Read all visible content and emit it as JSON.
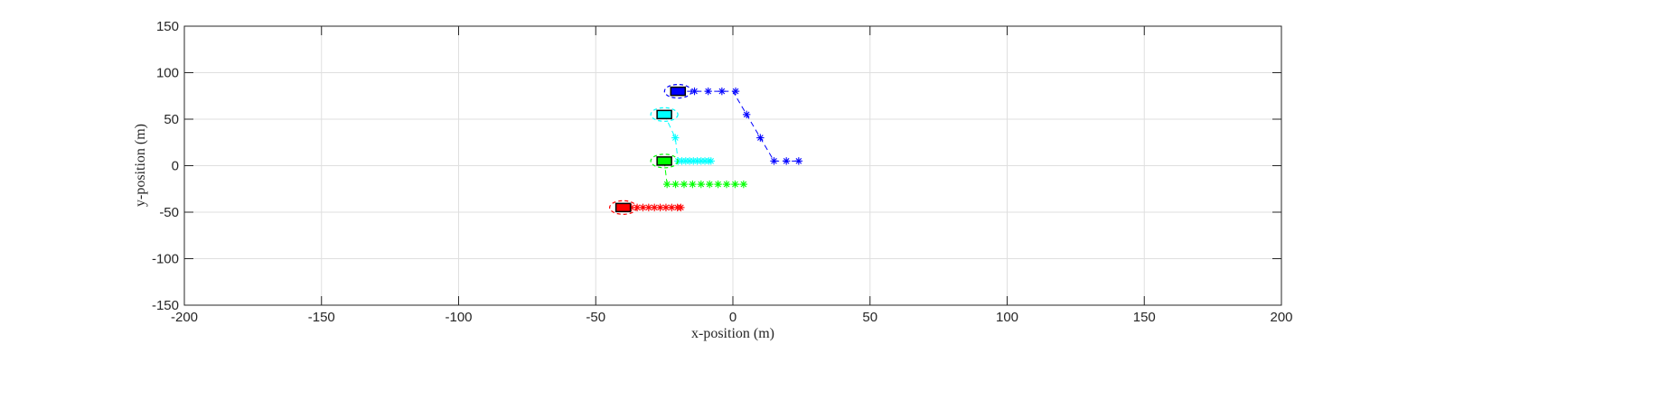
{
  "chart_data": {
    "type": "scatter",
    "title": "",
    "xlabel": "x-position (m)",
    "ylabel": "y-position (m)",
    "xlim": [
      -200,
      200
    ],
    "ylim": [
      -150,
      150
    ],
    "xticks": [
      -200,
      -150,
      -100,
      -50,
      0,
      50,
      100,
      150,
      200
    ],
    "yticks": [
      -150,
      -100,
      -50,
      0,
      50,
      100,
      150
    ],
    "xtick_labels": [
      "-200",
      "-150",
      "-100",
      "-50",
      "0",
      "50",
      "100",
      "150",
      "200"
    ],
    "ytick_labels": [
      "-150",
      "-100",
      "-50",
      "0",
      "50",
      "100",
      "150"
    ],
    "grid": true,
    "series": [
      {
        "color": "#0000ff",
        "vehicle": {
          "x": -20,
          "y": 80
        },
        "path": [
          [
            -20,
            80
          ],
          [
            0,
            80
          ],
          [
            5,
            55
          ],
          [
            10,
            30
          ],
          [
            15,
            5
          ],
          [
            24,
            5
          ]
        ],
        "markers": [
          [
            -14,
            80
          ],
          [
            -9,
            80
          ],
          [
            -4,
            80
          ],
          [
            1,
            80
          ],
          [
            5,
            55
          ],
          [
            10,
            30
          ],
          [
            15,
            5
          ],
          [
            19.5,
            5
          ],
          [
            24,
            5
          ]
        ]
      },
      {
        "color": "#00ffff",
        "vehicle": {
          "x": -25,
          "y": 55
        },
        "path": [
          [
            -25,
            55
          ],
          [
            -21,
            30
          ],
          [
            -20,
            5
          ],
          [
            -8,
            5
          ]
        ],
        "markers": [
          [
            -21,
            30
          ],
          [
            -20,
            5
          ],
          [
            -18.6,
            5
          ],
          [
            -17.2,
            5
          ],
          [
            -15.8,
            5
          ],
          [
            -14.4,
            5
          ],
          [
            -13,
            5
          ],
          [
            -11.6,
            5
          ],
          [
            -10.2,
            5
          ],
          [
            -8.8,
            5
          ],
          [
            -8,
            5
          ]
        ]
      },
      {
        "color": "#00ff00",
        "vehicle": {
          "x": -25,
          "y": 5
        },
        "path": [
          [
            -25,
            5
          ],
          [
            -24,
            -20
          ],
          [
            4,
            -20
          ]
        ],
        "markers": [
          [
            -24,
            -20
          ],
          [
            -20.9,
            -20
          ],
          [
            -17.8,
            -20
          ],
          [
            -14.7,
            -20
          ],
          [
            -11.6,
            -20
          ],
          [
            -8.5,
            -20
          ],
          [
            -5.4,
            -20
          ],
          [
            -2.3,
            -20
          ],
          [
            0.8,
            -20
          ],
          [
            3.9,
            -20
          ]
        ]
      },
      {
        "color": "#ff0000",
        "vehicle": {
          "x": -40,
          "y": -45
        },
        "path": [
          [
            -40,
            -45
          ],
          [
            -19,
            -45
          ]
        ],
        "markers": [
          [
            -37,
            -45
          ],
          [
            -34.9,
            -45
          ],
          [
            -32.8,
            -45
          ],
          [
            -30.7,
            -45
          ],
          [
            -28.6,
            -45
          ],
          [
            -26.5,
            -45
          ],
          [
            -24.4,
            -45
          ],
          [
            -22.3,
            -45
          ],
          [
            -20.2,
            -45
          ],
          [
            -19,
            -45
          ]
        ]
      }
    ]
  }
}
